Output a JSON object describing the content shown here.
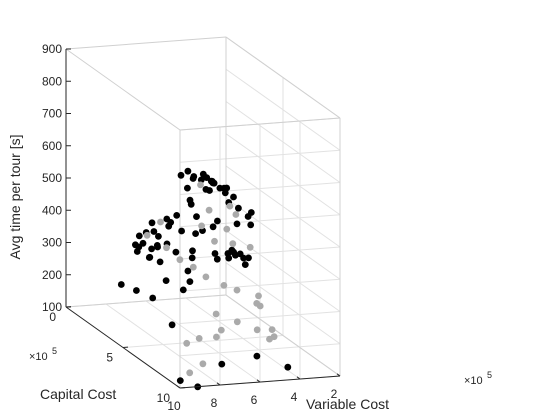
{
  "chart_data": {
    "type": "scatter",
    "projection": "3d",
    "title": "",
    "xlabel": "Variable Cost",
    "ylabel": "Capital Cost",
    "zlabel": "Avg time per tour [s]",
    "x_multiplier_label": "×10",
    "x_multiplier_exp": "5",
    "y_multiplier_label": "×10",
    "y_multiplier_exp": "5",
    "xlim": [
      2,
      10
    ],
    "ylim": [
      0,
      10
    ],
    "zlim": [
      100,
      900
    ],
    "x_ticks": [
      10,
      8,
      6,
      4,
      2
    ],
    "y_ticks": [
      0,
      5,
      10
    ],
    "z_ticks": [
      100,
      200,
      300,
      400,
      500,
      600,
      700,
      800,
      900
    ],
    "grid": true,
    "series_colors": {
      "black": "#000000",
      "gray": "#aaaaaa"
    },
    "series": [
      {
        "color": "black",
        "points": [
          [
            9.7,
            9.5,
            109
          ],
          [
            8.8,
            7.2,
            220
          ],
          [
            9.2,
            6.2,
            280
          ],
          [
            9.5,
            5.3,
            282
          ],
          [
            9.8,
            4.5,
            282
          ],
          [
            8.7,
            6.5,
            339
          ],
          [
            8.6,
            5.8,
            379
          ],
          [
            9.0,
            5.6,
            390
          ],
          [
            9.2,
            5.9,
            398
          ],
          [
            9.4,
            5.2,
            400
          ],
          [
            8.6,
            4.3,
            399
          ],
          [
            8.5,
            3.8,
            409
          ],
          [
            8.1,
            3.7,
            415
          ],
          [
            8.0,
            4.6,
            425
          ],
          [
            7.6,
            4.8,
            460
          ],
          [
            8.3,
            6.2,
            510
          ],
          [
            8.4,
            6.9,
            550
          ],
          [
            7.9,
            7.3,
            592
          ],
          [
            8.7,
            8.6,
            641
          ],
          [
            7.5,
            5.7,
            640
          ],
          [
            7.2,
            6.3,
            650
          ],
          [
            6.9,
            6.9,
            660
          ],
          [
            7.1,
            7.5,
            636
          ],
          [
            6.3,
            6.5,
            630
          ],
          [
            6.1,
            5.9,
            620
          ],
          [
            5.8,
            6.5,
            612
          ],
          [
            5.5,
            6.8,
            591
          ],
          [
            5.7,
            4.5,
            605
          ],
          [
            5.9,
            3.5,
            590
          ],
          [
            5.4,
            3.8,
            568
          ],
          [
            5.2,
            4.4,
            578
          ],
          [
            5.0,
            5.2,
            561
          ],
          [
            4.7,
            4.8,
            565
          ],
          [
            4.6,
            3.4,
            545
          ],
          [
            4.3,
            3.5,
            530
          ],
          [
            4.9,
            2.2,
            530
          ],
          [
            5.3,
            2.4,
            507
          ],
          [
            4.6,
            2.8,
            510
          ],
          [
            4.2,
            4.1,
            500
          ],
          [
            4.0,
            4.6,
            494
          ],
          [
            3.8,
            5.1,
            480
          ],
          [
            3.5,
            4.8,
            445
          ],
          [
            3.3,
            4.5,
            475
          ],
          [
            3.5,
            3.6,
            418
          ],
          [
            3.8,
            2.4,
            398
          ],
          [
            4.3,
            2.9,
            395
          ],
          [
            4.5,
            1.8,
            400
          ],
          [
            5.0,
            3.2,
            394
          ],
          [
            5.4,
            3.3,
            389
          ],
          [
            5.7,
            2.6,
            381
          ],
          [
            6.1,
            2.0,
            405
          ],
          [
            6.5,
            1.4,
            380
          ],
          [
            6.8,
            2.1,
            372
          ],
          [
            7.0,
            3.6,
            372
          ],
          [
            7.2,
            3.1,
            356
          ],
          [
            7.6,
            3.3,
            352
          ],
          [
            7.9,
            2.7,
            344
          ],
          [
            7.5,
            1.7,
            324
          ],
          [
            6.9,
            2.6,
            337
          ],
          [
            6.5,
            3.5,
            342
          ],
          [
            6.2,
            4.4,
            345
          ],
          [
            5.9,
            3.9,
            353
          ],
          [
            5.4,
            5.0,
            370
          ],
          [
            5.0,
            4.5,
            338
          ],
          [
            4.6,
            4.8,
            347
          ],
          [
            4.3,
            4.2,
            345
          ],
          [
            3.9,
            4.0,
            342
          ],
          [
            3.7,
            3.5,
            335
          ],
          [
            3.4,
            3.7,
            327
          ],
          [
            3.1,
            3.9,
            318
          ],
          [
            3.0,
            3.3,
            302
          ],
          [
            2.8,
            3.1,
            276
          ],
          [
            2.9,
            2.4,
            288
          ],
          [
            7.0,
            8.4,
            120
          ],
          [
            9.0,
            9.8,
            94
          ],
          [
            4.9,
            7.8,
            120
          ],
          [
            3.7,
            8.4,
            95
          ],
          [
            6.6,
            4.9,
            286
          ],
          [
            7.1,
            5.2,
            270
          ],
          [
            6.3,
            4.2,
            300
          ]
        ]
      },
      {
        "color": "gray",
        "points": [
          [
            9.0,
            9.1,
            120
          ],
          [
            8.0,
            8.5,
            128
          ],
          [
            7.9,
            6.9,
            151
          ],
          [
            7.1,
            6.6,
            155
          ],
          [
            6.3,
            6.7,
            158
          ],
          [
            5.6,
            5.9,
            156
          ],
          [
            5.4,
            5.1,
            185
          ],
          [
            4.8,
            5.9,
            178
          ],
          [
            4.2,
            6.6,
            168
          ],
          [
            3.7,
            6.8,
            142
          ],
          [
            3.3,
            6.5,
            140
          ],
          [
            3.0,
            5.8,
            143
          ],
          [
            2.8,
            4.4,
            180
          ],
          [
            2.6,
            3.9,
            198
          ],
          [
            3.2,
            4.8,
            200
          ],
          [
            3.9,
            4.3,
            232
          ],
          [
            4.5,
            4.2,
            247
          ],
          [
            5.0,
            3.5,
            258
          ],
          [
            5.4,
            3.1,
            280
          ],
          [
            5.9,
            2.8,
            298
          ],
          [
            6.4,
            2.5,
            330
          ],
          [
            6.8,
            1.5,
            345
          ],
          [
            5.9,
            1.1,
            372
          ],
          [
            4.1,
            2.2,
            428
          ],
          [
            3.9,
            1.1,
            478
          ],
          [
            3.0,
            2.1,
            433
          ],
          [
            3.1,
            2.8,
            425
          ],
          [
            4.7,
            2.6,
            392
          ],
          [
            4.4,
            3.2,
            358
          ],
          [
            3.6,
            3.4,
            352
          ],
          [
            2.9,
            3.7,
            345
          ],
          [
            3.5,
            2.7,
            379
          ]
        ]
      }
    ]
  }
}
